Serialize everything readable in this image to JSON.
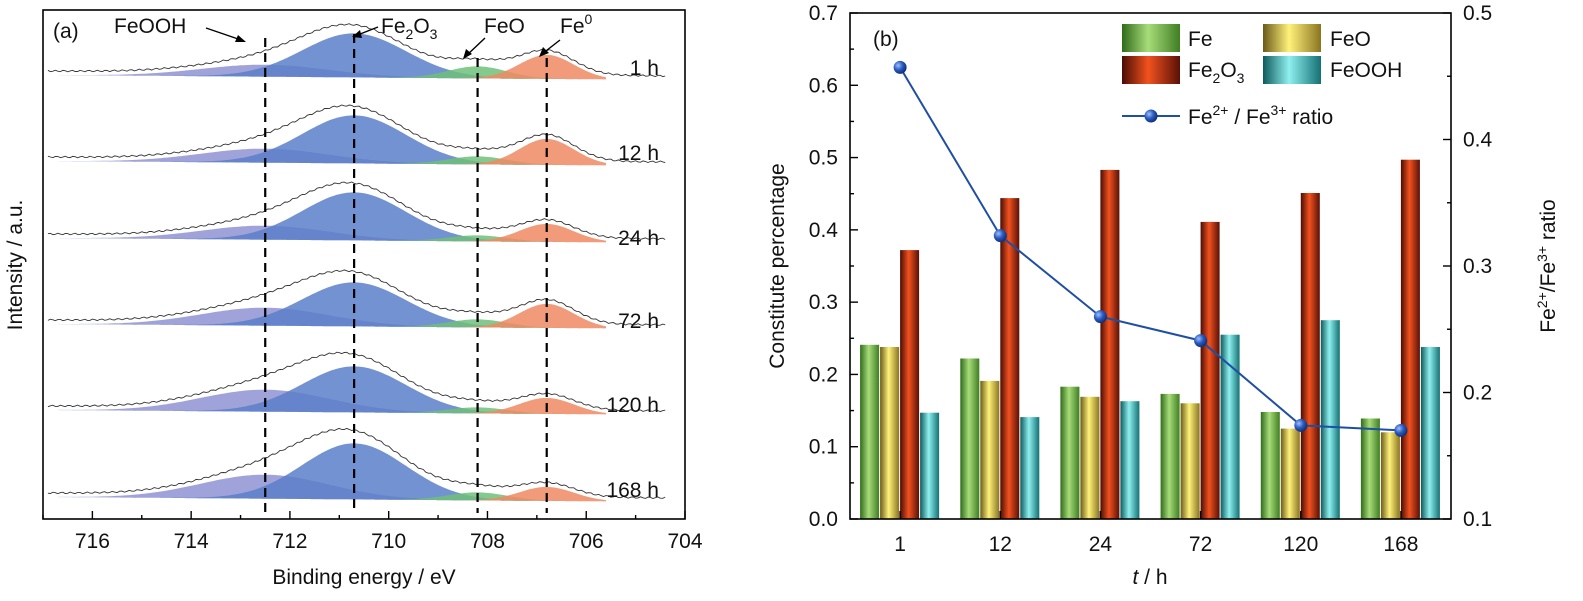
{
  "chart_data": [
    {
      "type": "area",
      "panel_label": "(a)",
      "xlabel": "Binding energy / eV",
      "ylabel": "Intensity / a.u.",
      "xlim": [
        717,
        704
      ],
      "xticks": [
        "716",
        "714",
        "712",
        "710",
        "708",
        "706",
        "704"
      ],
      "components": [
        {
          "name": "FeOOH",
          "center": 712.5,
          "color": "#8f93d2"
        },
        {
          "name": "Fe2O3",
          "center": 710.7,
          "color": "#5b7fc9"
        },
        {
          "name": "FeO",
          "center": 708.2,
          "color": "#6fbf7a"
        },
        {
          "name": "Fe0",
          "center": 706.8,
          "color": "#f08a63"
        }
      ],
      "annotations": [
        {
          "base": "FeOOH",
          "sub": "",
          "sup": ""
        },
        {
          "base": "Fe",
          "sub": "2",
          "mid": "O",
          "sub2": "3"
        },
        {
          "base": "FeO",
          "sub": "",
          "sup": ""
        },
        {
          "base": "Fe",
          "sup": "0"
        }
      ],
      "series": [
        {
          "name": "1 h",
          "label": "1 h"
        },
        {
          "name": "12 h",
          "label": "12 h"
        },
        {
          "name": "24 h",
          "label": "24 h"
        },
        {
          "name": "72 h",
          "label": "72 h"
        },
        {
          "name": "120 h",
          "label": "120 h"
        },
        {
          "name": "168 h",
          "label": "168 h"
        }
      ],
      "dashed_lines_at": [
        712.5,
        710.7,
        708.2,
        706.8
      ]
    },
    {
      "type": "bar",
      "panel_label": "(b)",
      "xlabel_italic": "t",
      "xlabel_rest": " / h",
      "ylabel": "Constitute percentage",
      "ylabel_right_parts": {
        "a": "Fe",
        "a_sup": "2+",
        "b": "/Fe",
        "b_sup": "3+",
        "c": " ratio"
      },
      "categories": [
        "1",
        "12",
        "24",
        "72",
        "120",
        "168"
      ],
      "ylim": [
        0,
        0.7
      ],
      "yticks": [
        "0.0",
        "0.1",
        "0.2",
        "0.3",
        "0.4",
        "0.5",
        "0.6",
        "0.7"
      ],
      "y2lim": [
        0.1,
        0.5
      ],
      "y2ticks": [
        "0.1",
        "0.2",
        "0.3",
        "0.4",
        "0.5"
      ],
      "series": [
        {
          "name": "Fe",
          "values": [
            0.241,
            0.222,
            0.183,
            0.173,
            0.148,
            0.139
          ],
          "color": "#7cc05a"
        },
        {
          "name": "FeO",
          "values": [
            0.238,
            0.191,
            0.169,
            0.16,
            0.125,
            0.12
          ],
          "color": "#f0d64a"
        },
        {
          "name": "Fe2O3",
          "values": [
            0.372,
            0.444,
            0.483,
            0.411,
            0.451,
            0.497
          ],
          "color": "#e0401c"
        },
        {
          "name": "FeOOH",
          "values": [
            0.147,
            0.141,
            0.163,
            0.255,
            0.275,
            0.238
          ],
          "color": "#3cbfc2"
        }
      ],
      "line_series": {
        "name": "Fe2+ / Fe3+ ratio",
        "values": [
          0.457,
          0.324,
          0.26,
          0.241,
          0.174,
          0.17
        ],
        "color": "#1f4fa3"
      },
      "legend": {
        "fe": "Fe",
        "feo": "FeO",
        "fe2o3_base": "Fe",
        "fe2o3_sub": "2",
        "fe2o3_mid": "O",
        "fe2o3_sub2": "3",
        "feooh": "FeOOH",
        "ratio_a": "Fe",
        "ratio_a_sup": "2+",
        "ratio_b": " / Fe",
        "ratio_b_sup": "3+",
        "ratio_c": " ratio"
      },
      "legend_placement": "top-right"
    }
  ]
}
